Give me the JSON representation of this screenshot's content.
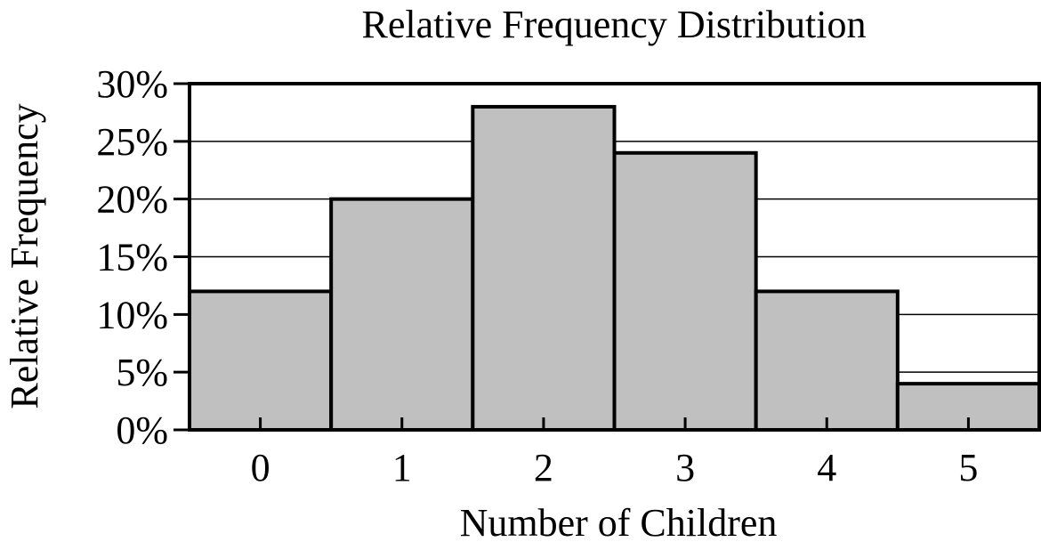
{
  "chart_data": {
    "type": "bar",
    "title": "Relative Frequency Distribution",
    "xlabel": "Number of Children",
    "ylabel": "Relative Frequency",
    "categories": [
      "0",
      "1",
      "2",
      "3",
      "4",
      "5"
    ],
    "values": [
      12,
      20,
      28,
      24,
      12,
      4
    ],
    "value_unit": "percent",
    "ylim": [
      0,
      30
    ],
    "yticks": [
      0,
      5,
      10,
      15,
      20,
      25,
      30
    ],
    "ytick_labels": [
      "0%",
      "5%",
      "10%",
      "15%",
      "20%",
      "25%",
      "30%"
    ],
    "grid": true,
    "bar_color": "#c0c0c0"
  }
}
